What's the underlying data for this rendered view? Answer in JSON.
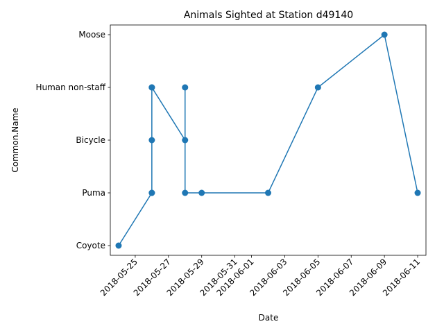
{
  "chart_data": {
    "type": "line",
    "title": "Animals Sighted at Station d49140",
    "xlabel": "Date",
    "ylabel": "Common.Name",
    "x_tick_labels": [
      "2018-05-25",
      "2018-05-27",
      "2018-05-29",
      "2018-05-31",
      "2018-06-01",
      "2018-06-03",
      "2018-06-05",
      "2018-06-07",
      "2018-06-09",
      "2018-06-11"
    ],
    "x_tick_dates": [
      "2018-05-25",
      "2018-05-27",
      "2018-05-29",
      "2018-05-31",
      "2018-06-01",
      "2018-06-03",
      "2018-06-05",
      "2018-06-07",
      "2018-06-09",
      "2018-06-11"
    ],
    "y_categories": [
      "Coyote",
      "Puma",
      "Bicycle",
      "Human non-staff",
      "Moose"
    ],
    "xlim": [
      "2018-05-23 12:00",
      "2018-06-11 12:00"
    ],
    "grid": false,
    "line_color": "#1f77b4",
    "marker": "circle",
    "series": [
      {
        "points": [
          {
            "x": "2018-05-24",
            "y": "Coyote"
          },
          {
            "x": "2018-05-26",
            "y": "Puma"
          },
          {
            "x": "2018-05-26",
            "y": "Human non-staff"
          },
          {
            "x": "2018-05-26",
            "y": "Bicycle"
          },
          {
            "x": "2018-05-26",
            "y": "Puma"
          },
          {
            "x": "2018-05-26",
            "y": "Human non-staff"
          },
          {
            "x": "2018-05-28",
            "y": "Bicycle"
          },
          {
            "x": "2018-05-28",
            "y": "Human non-staff"
          },
          {
            "x": "2018-05-28",
            "y": "Puma"
          },
          {
            "x": "2018-05-29",
            "y": "Puma"
          },
          {
            "x": "2018-06-02",
            "y": "Puma"
          },
          {
            "x": "2018-06-05",
            "y": "Human non-staff"
          },
          {
            "x": "2018-06-09",
            "y": "Moose"
          },
          {
            "x": "2018-06-11",
            "y": "Puma"
          }
        ]
      }
    ]
  }
}
